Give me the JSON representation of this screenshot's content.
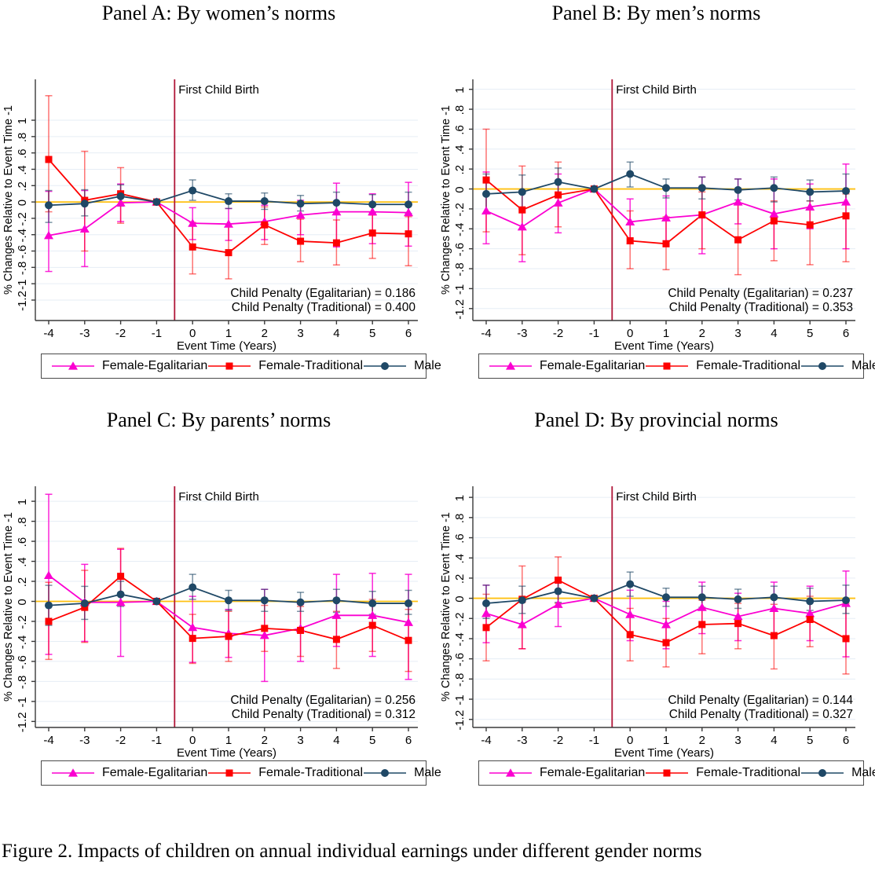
{
  "figure": {
    "caption": "Figure 2. Impacts of children on annual individual earnings under different gender norms"
  },
  "axes": {
    "x_label": "Event Time (Years)",
    "y_label": "% Changes Relative to Event Time -1",
    "x_ticks": [
      -4,
      -3,
      -2,
      -1,
      0,
      1,
      2,
      3,
      4,
      5,
      6
    ],
    "y_ticks": [
      -1.2,
      -1,
      -0.8,
      -0.6,
      -0.4,
      -0.2,
      0,
      0.2,
      0.4,
      0.6,
      0.8,
      1
    ],
    "y_tick_labels": [
      "-1.2",
      "-1",
      "-.8",
      "-.6",
      "-.4",
      "-.2",
      "0",
      ".2",
      ".4",
      ".6",
      ".8",
      "1"
    ],
    "event_line_label": "First Child Birth",
    "event_line_x": -0.5
  },
  "colors": {
    "egalitarian": "#fb00d1",
    "traditional": "#fe0000",
    "male": "#1f4866",
    "zero_line": "#ffc012",
    "event_line": "#b01638",
    "grid": "#e6edf5",
    "axis": "#3a3a3a",
    "text": "#000000"
  },
  "legend": [
    {
      "name": "Female-Egalitarian",
      "marker": "triangle",
      "color": "#fb00d1"
    },
    {
      "name": "Female-Traditional",
      "marker": "square",
      "color": "#fe0000"
    },
    {
      "name": "Male",
      "marker": "circle",
      "color": "#1f4866"
    }
  ],
  "chart_data": [
    {
      "type": "line",
      "title": "Panel A: By women’s norms",
      "x": [
        -4,
        -3,
        -2,
        -1,
        0,
        1,
        2,
        3,
        4,
        5,
        6
      ],
      "ylim": [
        -1.45,
        1.5
      ],
      "annotations": [
        "Child Penalty (Egalitarian) = 0.186",
        "Child Penalty (Traditional) = 0.400"
      ],
      "series": [
        {
          "name": "Female-Egalitarian",
          "marker": "triangle",
          "color": "#fb00d1",
          "ci_opacity": 0.85,
          "values": [
            -0.41,
            -0.33,
            -0.01,
            0,
            -0.26,
            -0.27,
            -0.24,
            -0.16,
            -0.12,
            -0.12,
            -0.13
          ],
          "ci_low": [
            -0.85,
            -0.79,
            -0.24,
            0,
            -0.46,
            -0.47,
            -0.46,
            -0.4,
            -0.55,
            -0.51,
            -0.54
          ],
          "ci_high": [
            0.13,
            0.14,
            0.22,
            0,
            -0.07,
            -0.08,
            -0.04,
            0.02,
            0.23,
            0.1,
            0.24
          ]
        },
        {
          "name": "Female-Traditional",
          "marker": "square",
          "color": "#fe0000",
          "ci_opacity": 0.55,
          "values": [
            0.52,
            0.02,
            0.1,
            0,
            -0.55,
            -0.62,
            -0.28,
            -0.48,
            -0.5,
            -0.38,
            -0.39
          ],
          "ci_low": [
            -0.12,
            -0.6,
            -0.26,
            0,
            -0.88,
            -0.94,
            -0.52,
            -0.73,
            -0.77,
            -0.69,
            -0.78
          ],
          "ci_high": [
            1.3,
            0.62,
            0.42,
            0,
            -0.25,
            -0.3,
            -0.06,
            -0.21,
            -0.22,
            -0.16,
            -0.18
          ]
        },
        {
          "name": "Male",
          "marker": "circle",
          "color": "#1f4866",
          "ci_opacity": 0.6,
          "values": [
            -0.04,
            -0.02,
            0.07,
            0,
            0.14,
            0.01,
            0.01,
            -0.02,
            -0.01,
            -0.03,
            -0.03
          ],
          "ci_low": [
            -0.25,
            -0.17,
            -0.05,
            0,
            0.02,
            -0.08,
            -0.09,
            -0.11,
            -0.12,
            -0.13,
            -0.14
          ],
          "ci_high": [
            0.14,
            0.15,
            0.21,
            0,
            0.27,
            0.1,
            0.11,
            0.08,
            0.12,
            0.09,
            0.12
          ]
        }
      ]
    },
    {
      "type": "line",
      "title": "Panel B: By men’s norms",
      "x": [
        -4,
        -3,
        -2,
        -1,
        0,
        1,
        2,
        3,
        4,
        5,
        6
      ],
      "ylim": [
        -1.32,
        1.1
      ],
      "annotations": [
        "Child Penalty (Egalitarian) = 0.237",
        "Child Penalty (Traditional) = 0.353"
      ],
      "series": [
        {
          "name": "Female-Egalitarian",
          "marker": "triangle",
          "color": "#fb00d1",
          "ci_opacity": 0.85,
          "values": [
            -0.22,
            -0.38,
            -0.14,
            0,
            -0.33,
            -0.29,
            -0.26,
            -0.13,
            -0.25,
            -0.18,
            -0.13
          ],
          "ci_low": [
            -0.55,
            -0.73,
            -0.44,
            0,
            -0.55,
            -0.52,
            -0.65,
            -0.35,
            -0.6,
            -0.4,
            -0.6
          ],
          "ci_high": [
            0.17,
            -0.02,
            0.15,
            0,
            -0.1,
            -0.07,
            0.12,
            0.1,
            0.1,
            0.05,
            0.25
          ]
        },
        {
          "name": "Female-Traditional",
          "marker": "square",
          "color": "#fe0000",
          "ci_opacity": 0.55,
          "values": [
            0.09,
            -0.21,
            -0.06,
            0,
            -0.52,
            -0.55,
            -0.26,
            -0.51,
            -0.32,
            -0.36,
            -0.27
          ],
          "ci_low": [
            -0.43,
            -0.66,
            -0.38,
            0,
            -0.8,
            -0.81,
            -0.6,
            -0.86,
            -0.72,
            -0.76,
            -0.73
          ],
          "ci_high": [
            0.6,
            0.23,
            0.27,
            0,
            -0.22,
            -0.28,
            -0.03,
            -0.16,
            -0.12,
            -0.12,
            -0.05
          ]
        },
        {
          "name": "Male",
          "marker": "circle",
          "color": "#1f4866",
          "ci_opacity": 0.6,
          "values": [
            -0.05,
            -0.03,
            0.07,
            0,
            0.15,
            0.01,
            0.01,
            -0.01,
            0.01,
            -0.03,
            -0.02
          ],
          "ci_low": [
            -0.24,
            -0.2,
            -0.08,
            0,
            0.02,
            -0.09,
            -0.1,
            -0.11,
            -0.13,
            -0.12,
            -0.15
          ],
          "ci_high": [
            0.15,
            0.14,
            0.21,
            0,
            0.27,
            0.1,
            0.12,
            0.1,
            0.12,
            0.09,
            0.15
          ]
        }
      ]
    },
    {
      "type": "line",
      "title": "Panel C: By parents’ norms",
      "x": [
        -4,
        -3,
        -2,
        -1,
        0,
        1,
        2,
        3,
        4,
        5,
        6
      ],
      "ylim": [
        -1.26,
        1.15
      ],
      "annotations": [
        "Child Penalty (Egalitarian) = 0.256",
        "Child Penalty (Traditional) = 0.312"
      ],
      "series": [
        {
          "name": "Female-Egalitarian",
          "marker": "triangle",
          "color": "#fb00d1",
          "ci_opacity": 0.85,
          "values": [
            0.26,
            -0.01,
            -0.01,
            0,
            -0.26,
            -0.32,
            -0.34,
            -0.27,
            -0.14,
            -0.14,
            -0.21
          ],
          "ci_low": [
            -0.53,
            -0.4,
            -0.55,
            0,
            -0.61,
            -0.56,
            -0.8,
            -0.6,
            -0.45,
            -0.55,
            -0.78
          ],
          "ci_high": [
            1.07,
            0.37,
            0.52,
            0,
            0.05,
            -0.08,
            0.12,
            -0.03,
            0.27,
            0.28,
            0.27
          ]
        },
        {
          "name": "Female-Traditional",
          "marker": "square",
          "color": "#fe0000",
          "ci_opacity": 0.55,
          "values": [
            -0.2,
            -0.06,
            0.25,
            0,
            -0.37,
            -0.35,
            -0.27,
            -0.29,
            -0.38,
            -0.24,
            -0.39
          ],
          "ci_low": [
            -0.58,
            -0.41,
            -0.04,
            0,
            -0.62,
            -0.6,
            -0.5,
            -0.55,
            -0.67,
            -0.5,
            -0.7
          ],
          "ci_high": [
            0.19,
            0.31,
            0.53,
            0,
            -0.13,
            -0.1,
            -0.04,
            -0.05,
            -0.1,
            0.02,
            -0.08
          ]
        },
        {
          "name": "Male",
          "marker": "circle",
          "color": "#1f4866",
          "ci_opacity": 0.6,
          "values": [
            -0.04,
            -0.02,
            0.07,
            0,
            0.14,
            0.01,
            0.01,
            -0.01,
            0.01,
            -0.02,
            -0.02
          ],
          "ci_low": [
            -0.24,
            -0.18,
            -0.05,
            0,
            0.02,
            -0.09,
            -0.1,
            -0.1,
            -0.11,
            -0.13,
            -0.13
          ],
          "ci_high": [
            0.16,
            0.15,
            0.2,
            0,
            0.27,
            0.11,
            0.12,
            0.09,
            0.12,
            0.1,
            0.11
          ]
        }
      ]
    },
    {
      "type": "line",
      "title": "Panel D: By provincial norms",
      "x": [
        -4,
        -3,
        -2,
        -1,
        0,
        1,
        2,
        3,
        4,
        5,
        6
      ],
      "ylim": [
        -1.28,
        1.11
      ],
      "annotations": [
        "Child Penalty (Egalitarian) = 0.144",
        "Child Penalty (Traditional) = 0.327"
      ],
      "series": [
        {
          "name": "Female-Egalitarian",
          "marker": "triangle",
          "color": "#fb00d1",
          "ci_opacity": 0.85,
          "values": [
            -0.15,
            -0.26,
            -0.06,
            0,
            -0.16,
            -0.26,
            -0.09,
            -0.18,
            -0.1,
            -0.15,
            -0.05
          ],
          "ci_low": [
            -0.44,
            -0.5,
            -0.28,
            0,
            -0.42,
            -0.5,
            -0.35,
            -0.42,
            -0.37,
            -0.42,
            -0.58
          ],
          "ci_high": [
            0.13,
            -0.02,
            0.15,
            0,
            0.08,
            -0.03,
            0.16,
            0.05,
            0.16,
            0.12,
            0.27
          ]
        },
        {
          "name": "Female-Traditional",
          "marker": "square",
          "color": "#fe0000",
          "ci_opacity": 0.55,
          "values": [
            -0.29,
            -0.01,
            0.18,
            0,
            -0.36,
            -0.44,
            -0.26,
            -0.25,
            -0.37,
            -0.21,
            -0.4
          ],
          "ci_low": [
            -0.62,
            -0.5,
            -0.05,
            0,
            -0.62,
            -0.68,
            -0.55,
            -0.5,
            -0.7,
            -0.48,
            -0.75
          ],
          "ci_high": [
            0.04,
            0.32,
            0.41,
            0,
            -0.1,
            -0.2,
            -0.02,
            -0.05,
            -0.06,
            0.02,
            -0.05
          ]
        },
        {
          "name": "Male",
          "marker": "circle",
          "color": "#1f4866",
          "ci_opacity": 0.6,
          "values": [
            -0.05,
            -0.02,
            0.07,
            0,
            0.14,
            0.01,
            0.01,
            -0.01,
            0.01,
            -0.03,
            -0.02
          ],
          "ci_low": [
            -0.2,
            -0.15,
            -0.04,
            0,
            0.02,
            -0.08,
            -0.09,
            -0.1,
            -0.1,
            -0.12,
            -0.15
          ],
          "ci_high": [
            0.13,
            0.12,
            0.19,
            0,
            0.26,
            0.1,
            0.12,
            0.09,
            0.12,
            0.1,
            0.13
          ]
        }
      ]
    }
  ]
}
